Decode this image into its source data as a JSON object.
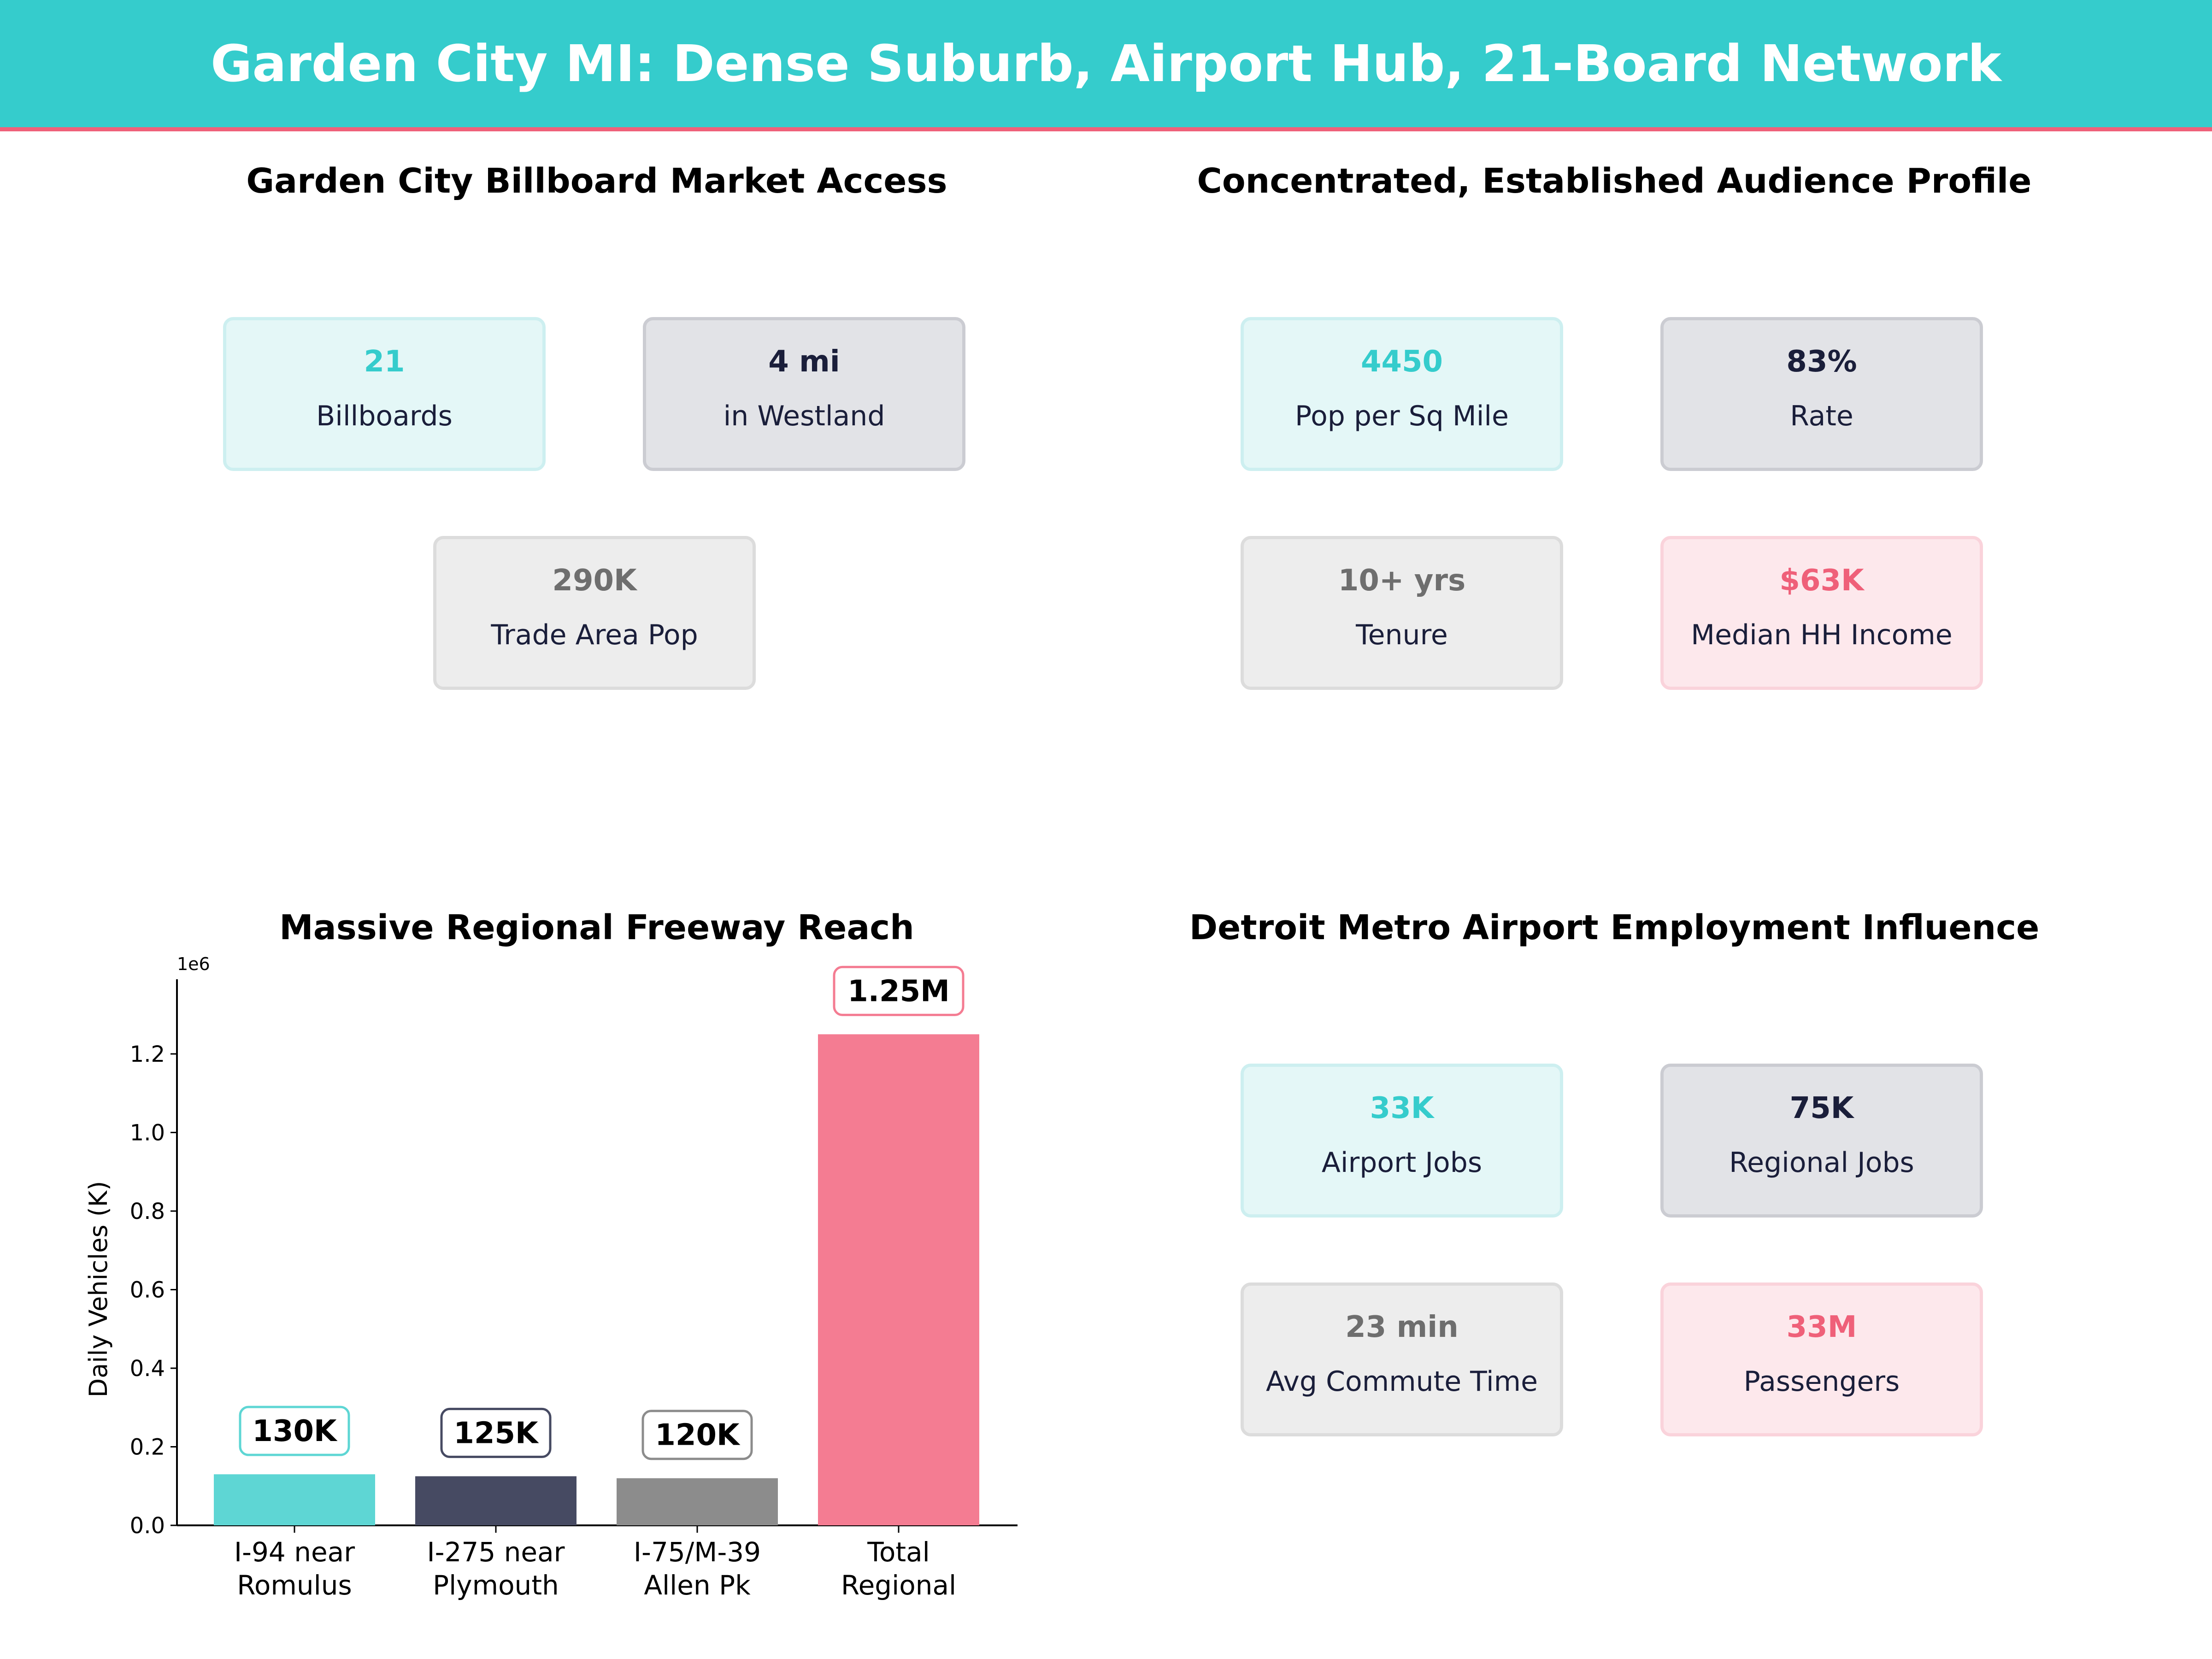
{
  "header": {
    "title": "Garden City MI: Dense Suburb, Airport Hub, 21-Board Network"
  },
  "panels": {
    "market_access": {
      "title": "Garden City Billboard Market Access",
      "kpis": [
        {
          "value": "21",
          "label": "Billboards",
          "style": "teal"
        },
        {
          "value": "4 mi",
          "label": "in Westland",
          "style": "navy"
        },
        {
          "value": "290K",
          "label": "Trade Area Pop",
          "style": "grey"
        }
      ]
    },
    "audience": {
      "title": "Concentrated, Established Audience Profile",
      "kpis": [
        {
          "value": "4450",
          "label": "Pop per Sq Mile",
          "style": "teal"
        },
        {
          "value": "83%",
          "label": "Rate",
          "style": "navy"
        },
        {
          "value": "10+ yrs",
          "label": "Tenure",
          "style": "grey"
        },
        {
          "value": "$63K",
          "label": "Median HH Income",
          "style": "pink"
        }
      ]
    },
    "freeway": {
      "title": "Massive Regional Freeway Reach"
    },
    "airport": {
      "title": "Detroit Metro Airport Employment Influence",
      "kpis": [
        {
          "value": "33K",
          "label": "Airport Jobs",
          "style": "teal"
        },
        {
          "value": "75K",
          "label": "Regional Jobs",
          "style": "navy"
        },
        {
          "value": "23 min",
          "label": "Avg Commute Time",
          "style": "grey"
        },
        {
          "value": "33M",
          "label": "Passengers",
          "style": "pink"
        }
      ]
    }
  },
  "colors": {
    "teal": "#35CCCC",
    "navy": "#1A1E3A",
    "grey": "#6E6E6E",
    "pink": "#EF6079"
  },
  "chart_data": {
    "type": "bar",
    "title": "Massive Regional Freeway Reach",
    "categories": [
      "I-94 near\nRomulus",
      "I-275 near\nPlymouth",
      "I-75/M-39\nAllen Pk",
      "Total\nRegional"
    ],
    "category_lines": [
      [
        "I-94 near",
        "Romulus"
      ],
      [
        "I-275 near",
        "Plymouth"
      ],
      [
        "I-75/M-39",
        "Allen Pk"
      ],
      [
        "Total",
        "Regional"
      ]
    ],
    "values": [
      130000,
      125000,
      120000,
      1250000
    ],
    "value_labels": [
      "130K",
      "125K",
      "120K",
      "1.25M"
    ],
    "bar_colors": [
      "#5ED6D4",
      "#464A62",
      "#8C8C8C",
      "#F47C92"
    ],
    "label_border_colors": [
      "#5ED6D4",
      "#464A62",
      "#8C8C8C",
      "#F47C92"
    ],
    "xlabel": "",
    "ylabel": "Daily Vehicles (K)",
    "y_offset_label": "1e6",
    "yticks": [
      0.0,
      0.2,
      0.4,
      0.6,
      0.8,
      1.0,
      1.2
    ],
    "ytick_labels": [
      "0.0",
      "0.2",
      "0.4",
      "0.6",
      "0.8",
      "1.0",
      "1.2"
    ],
    "ylim": [
      0,
      1390000
    ],
    "grid": false,
    "legend": null
  }
}
